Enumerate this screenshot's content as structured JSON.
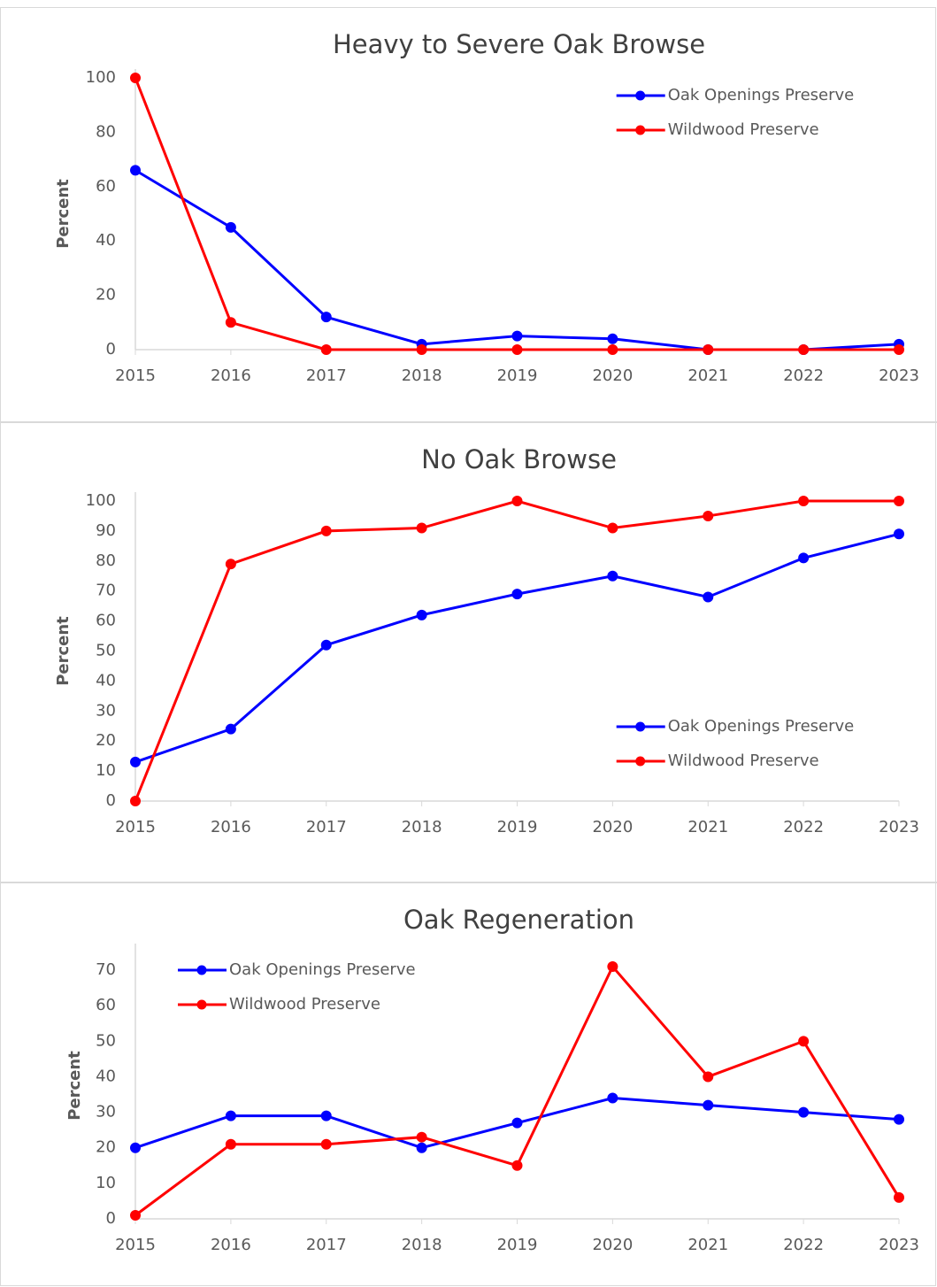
{
  "chart_data": [
    {
      "type": "line",
      "title": "Heavy to Severe Oak Browse",
      "y_label": "Percent",
      "x": [
        2015,
        2016,
        2017,
        2018,
        2019,
        2020,
        2021,
        2022,
        2023
      ],
      "series": [
        {
          "name": "Oak Openings Preserve",
          "color": "#0000ff",
          "values": [
            66,
            45,
            12,
            2,
            5,
            4,
            0,
            0,
            2
          ]
        },
        {
          "name": "Wildwood Preserve",
          "color": "#ff0000",
          "values": [
            100,
            10,
            0,
            0,
            0,
            0,
            0,
            0,
            0
          ]
        }
      ],
      "ylim": [
        0,
        100
      ],
      "yticks": [
        0,
        20,
        40,
        60,
        80,
        100
      ],
      "grid": false,
      "legend": "upper right"
    },
    {
      "type": "line",
      "title": "No Oak Browse",
      "y_label": "Percent",
      "x": [
        2015,
        2016,
        2017,
        2018,
        2019,
        2020,
        2021,
        2022,
        2023
      ],
      "series": [
        {
          "name": "Oak Openings Preserve",
          "color": "#0000ff",
          "values": [
            13,
            24,
            52,
            62,
            69,
            75,
            68,
            81,
            89
          ]
        },
        {
          "name": "Wildwood Preserve",
          "color": "#ff0000",
          "values": [
            0,
            79,
            90,
            91,
            100,
            91,
            95,
            100,
            100
          ]
        }
      ],
      "ylim": [
        0,
        100
      ],
      "yticks": [
        0,
        10,
        20,
        30,
        40,
        50,
        60,
        70,
        80,
        90,
        100
      ],
      "grid": false,
      "legend": "lower right"
    },
    {
      "type": "line",
      "title": "Oak Regeneration",
      "y_label": "Percent",
      "x": [
        2015,
        2016,
        2017,
        2018,
        2019,
        2020,
        2021,
        2022,
        2023
      ],
      "series": [
        {
          "name": "Oak Openings Preserve",
          "color": "#0000ff",
          "values": [
            20,
            29,
            29,
            20,
            27,
            34,
            32,
            30,
            28
          ]
        },
        {
          "name": "Wildwood Preserve",
          "color": "#ff0000",
          "values": [
            1,
            21,
            21,
            23,
            15,
            71,
            40,
            50,
            6
          ]
        }
      ],
      "ylim": [
        0,
        75
      ],
      "yticks": [
        0,
        10,
        20,
        30,
        40,
        50,
        60,
        70
      ],
      "grid": false,
      "legend": "upper left"
    }
  ]
}
